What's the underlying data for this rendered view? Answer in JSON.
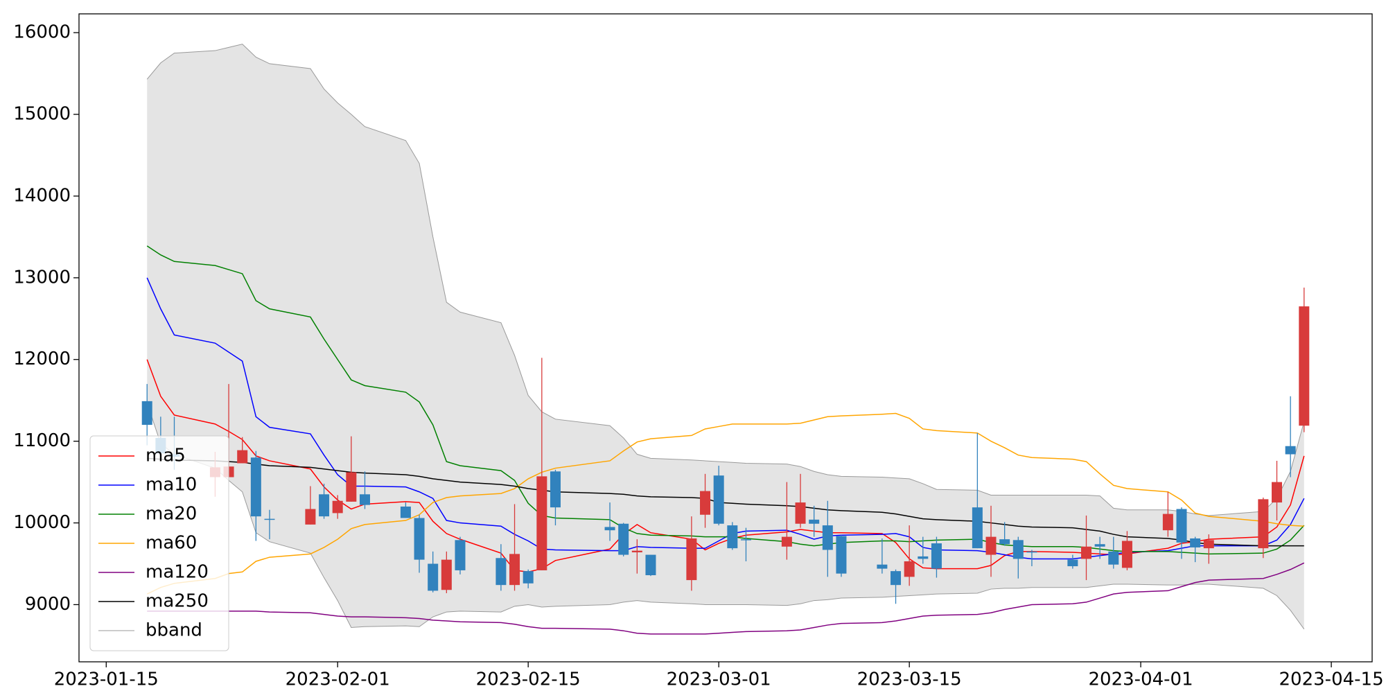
{
  "chart_data": {
    "type": "candlestick",
    "x": [
      "2023-01-18",
      "2023-01-19",
      "2023-01-20",
      "2023-01-23",
      "2023-01-24",
      "2023-01-25",
      "2023-01-26",
      "2023-01-27",
      "2023-01-30",
      "2023-01-31",
      "2023-02-01",
      "2023-02-02",
      "2023-02-03",
      "2023-02-06",
      "2023-02-07",
      "2023-02-08",
      "2023-02-09",
      "2023-02-10",
      "2023-02-13",
      "2023-02-14",
      "2023-02-15",
      "2023-02-16",
      "2023-02-17",
      "2023-02-21",
      "2023-02-22",
      "2023-02-23",
      "2023-02-24",
      "2023-02-27",
      "2023-02-28",
      "2023-03-01",
      "2023-03-02",
      "2023-03-03",
      "2023-03-06",
      "2023-03-07",
      "2023-03-08",
      "2023-03-09",
      "2023-03-10",
      "2023-03-13",
      "2023-03-14",
      "2023-03-15",
      "2023-03-16",
      "2023-03-17",
      "2023-03-20",
      "2023-03-21",
      "2023-03-22",
      "2023-03-23",
      "2023-03-24",
      "2023-03-27",
      "2023-03-28",
      "2023-03-29",
      "2023-03-30",
      "2023-03-31",
      "2023-04-03",
      "2023-04-04",
      "2023-04-05",
      "2023-04-06",
      "2023-04-10",
      "2023-04-11",
      "2023-04-12",
      "2023-04-13"
    ],
    "open": [
      11490,
      11040,
      10840,
      10560,
      10560,
      10730,
      10800,
      10050,
      9980,
      10350,
      10120,
      10260,
      10350,
      10200,
      10060,
      9500,
      9180,
      9790,
      9570,
      9240,
      9410,
      9420,
      10630,
      9950,
      9990,
      9640,
      9610,
      9300,
      10100,
      10580,
      9970,
      9800,
      9710,
      9990,
      10040,
      9970,
      9840,
      9490,
      9410,
      9340,
      9590,
      9750,
      10190,
      9610,
      9800,
      9790,
      9650,
      9550,
      9560,
      9740,
      9650,
      9450,
      9910,
      10170,
      9810,
      9690,
      9690,
      10250,
      10940,
      11190
    ],
    "high": [
      11700,
      11300,
      11300,
      10870,
      11700,
      11050,
      10880,
      10160,
      10450,
      10480,
      10340,
      11060,
      10630,
      10250,
      10100,
      9650,
      9650,
      9830,
      9740,
      10230,
      9430,
      12020,
      10650,
      10250,
      10000,
      9800,
      9610,
      10080,
      10600,
      10700,
      10010,
      9940,
      10500,
      10600,
      10210,
      10270,
      9850,
      9810,
      9430,
      9970,
      9830,
      9830,
      11100,
      10210,
      10010,
      9830,
      9670,
      9610,
      10090,
      9830,
      9830,
      9900,
      10380,
      10190,
      9830,
      9860,
      10310,
      10760,
      11550,
      12880
    ],
    "low": [
      10950,
      10800,
      10650,
      10320,
      10560,
      10730,
      9780,
      9800,
      9980,
      10050,
      10050,
      10260,
      10170,
      10060,
      9390,
      9150,
      9140,
      9370,
      9170,
      9170,
      9200,
      9420,
      9970,
      9780,
      9590,
      9380,
      9350,
      9170,
      9940,
      9970,
      9670,
      9530,
      9550,
      9940,
      9830,
      9340,
      9340,
      9380,
      9010,
      9230,
      9500,
      9330,
      9690,
      9340,
      9720,
      9320,
      9470,
      9440,
      9300,
      9560,
      9440,
      9420,
      9830,
      9560,
      9520,
      9500,
      9570,
      10030,
      10560,
      11110
    ],
    "close": [
      11200,
      10850,
      10810,
      10680,
      10690,
      10890,
      10080,
      10040,
      10170,
      10080,
      10270,
      10620,
      10220,
      10060,
      9550,
      9170,
      9550,
      9420,
      9240,
      9620,
      9260,
      10570,
      10190,
      9910,
      9610,
      9660,
      9360,
      9810,
      10390,
      9990,
      9690,
      9790,
      9830,
      10250,
      9990,
      9670,
      9380,
      9440,
      9240,
      9530,
      9560,
      9440,
      9690,
      9830,
      9740,
      9560,
      9640,
      9470,
      9710,
      9710,
      9490,
      9780,
      10110,
      9760,
      9700,
      9790,
      10290,
      10500,
      10840,
      12650
    ],
    "up_color": "#d83b3b",
    "down_color": "#3182bd",
    "series": [
      {
        "name": "ma5",
        "color": "#ff0000",
        "values": [
          12000,
          11550,
          11320,
          11210,
          11120,
          11020,
          10820,
          10760,
          10660,
          10440,
          10280,
          10170,
          10230,
          10260,
          10250,
          10020,
          9870,
          9800,
          9630,
          9420,
          9400,
          9440,
          9540,
          9680,
          9860,
          9980,
          9880,
          9800,
          9670,
          9750,
          9810,
          9850,
          9890,
          9920,
          9900,
          9880,
          9880,
          9870,
          9760,
          9560,
          9450,
          9440,
          9440,
          9480,
          9600,
          9650,
          9650,
          9640,
          9630,
          9620,
          9610,
          9620,
          9690,
          9750,
          9770,
          9800,
          9830,
          9950,
          10220,
          10820
        ]
      },
      {
        "name": "ma10",
        "color": "#0000ff",
        "values": [
          13000,
          12620,
          12300,
          12200,
          12090,
          11980,
          11300,
          11170,
          11090,
          10830,
          10590,
          10450,
          10450,
          10440,
          10380,
          10300,
          10030,
          10000,
          9960,
          9860,
          9780,
          9680,
          9670,
          9660,
          9660,
          9710,
          9700,
          9690,
          9690,
          9780,
          9870,
          9900,
          9910,
          9860,
          9800,
          9840,
          9850,
          9860,
          9870,
          9830,
          9700,
          9670,
          9660,
          9640,
          9610,
          9580,
          9560,
          9560,
          9580,
          9600,
          9620,
          9640,
          9660,
          9690,
          9720,
          9720,
          9720,
          9790,
          9980,
          10300
        ]
      },
      {
        "name": "ma20",
        "color": "#008000",
        "values": [
          13390,
          13280,
          13200,
          13150,
          13100,
          13050,
          12720,
          12620,
          12520,
          12250,
          12000,
          11750,
          11680,
          11600,
          11480,
          11200,
          10750,
          10700,
          10640,
          10520,
          10240,
          10090,
          10060,
          10040,
          9940,
          9870,
          9850,
          9840,
          9830,
          9830,
          9830,
          9810,
          9770,
          9740,
          9720,
          9740,
          9760,
          9780,
          9780,
          9770,
          9780,
          9790,
          9800,
          9760,
          9730,
          9720,
          9710,
          9710,
          9700,
          9680,
          9660,
          9650,
          9650,
          9640,
          9630,
          9620,
          9630,
          9680,
          9790,
          9970
        ]
      },
      {
        "name": "ma60",
        "color": "#ffa500",
        "values": [
          9130,
          9210,
          9260,
          9320,
          9380,
          9400,
          9530,
          9580,
          9620,
          9700,
          9800,
          9930,
          9980,
          10030,
          10100,
          10250,
          10310,
          10330,
          10360,
          10420,
          10540,
          10620,
          10670,
          10760,
          10880,
          10990,
          11030,
          11070,
          11150,
          11180,
          11210,
          11210,
          11210,
          11220,
          11260,
          11300,
          11310,
          11330,
          11340,
          11280,
          11150,
          11130,
          11100,
          11000,
          10920,
          10830,
          10800,
          10780,
          10750,
          10600,
          10460,
          10420,
          10380,
          10280,
          10120,
          10080,
          10020,
          9990,
          9970,
          9960
        ]
      },
      {
        "name": "ma120",
        "color": "#800080",
        "values": [
          8920,
          8920,
          8920,
          8920,
          8920,
          8920,
          8920,
          8910,
          8900,
          8880,
          8860,
          8850,
          8850,
          8840,
          8830,
          8810,
          8800,
          8790,
          8780,
          8760,
          8730,
          8710,
          8710,
          8700,
          8680,
          8650,
          8640,
          8640,
          8640,
          8650,
          8660,
          8670,
          8680,
          8690,
          8720,
          8750,
          8770,
          8780,
          8800,
          8830,
          8860,
          8870,
          8880,
          8900,
          8940,
          8970,
          9000,
          9010,
          9030,
          9080,
          9130,
          9150,
          9170,
          9220,
          9270,
          9300,
          9320,
          9370,
          9430,
          9510
        ]
      },
      {
        "name": "ma250",
        "color": "#000000",
        "values": [
          10790,
          10780,
          10770,
          10760,
          10750,
          10740,
          10720,
          10700,
          10680,
          10660,
          10640,
          10620,
          10610,
          10590,
          10570,
          10540,
          10520,
          10500,
          10470,
          10450,
          10420,
          10400,
          10380,
          10360,
          10350,
          10330,
          10320,
          10310,
          10300,
          10250,
          10240,
          10230,
          10210,
          10200,
          10180,
          10160,
          10150,
          10130,
          10110,
          10080,
          10050,
          10040,
          10020,
          10000,
          9980,
          9960,
          9950,
          9940,
          9920,
          9900,
          9860,
          9830,
          9810,
          9790,
          9760,
          9740,
          9720,
          9720,
          9720,
          9720
        ]
      }
    ],
    "bband": {
      "name": "bband",
      "color": "#999999",
      "fill": "#e4e4e4",
      "upper": [
        15430,
        15630,
        15750,
        15780,
        15820,
        15860,
        15700,
        15620,
        15560,
        15310,
        15140,
        15000,
        14850,
        14680,
        14400,
        13500,
        12700,
        12580,
        12450,
        12050,
        11560,
        11360,
        11270,
        11190,
        11040,
        10840,
        10790,
        10770,
        10760,
        10750,
        10740,
        10730,
        10720,
        10690,
        10630,
        10590,
        10570,
        10560,
        10550,
        10540,
        10480,
        10410,
        10400,
        10340,
        10340,
        10340,
        10340,
        10340,
        10340,
        10330,
        10180,
        10160,
        10160,
        10140,
        10110,
        10090,
        10140,
        10300,
        10630,
        11240
      ],
      "lower": [
        11470,
        10970,
        10840,
        10670,
        10520,
        10380,
        9880,
        9770,
        9630,
        9330,
        9050,
        8720,
        8730,
        8740,
        8730,
        8850,
        8910,
        8920,
        8910,
        8980,
        9000,
        8970,
        8980,
        9000,
        9030,
        9050,
        9030,
        9010,
        9000,
        9000,
        9000,
        9000,
        8990,
        9010,
        9050,
        9060,
        9080,
        9090,
        9100,
        9110,
        9120,
        9130,
        9140,
        9190,
        9200,
        9200,
        9210,
        9210,
        9210,
        9230,
        9250,
        9250,
        9240,
        9240,
        9250,
        9250,
        9200,
        9110,
        8930,
        8700
      ]
    },
    "xlim": [
      "2023-01-13",
      "2023-04-18"
    ],
    "xticks": [
      "2023-01-15",
      "2023-02-01",
      "2023-02-15",
      "2023-03-01",
      "2023-03-15",
      "2023-04-01",
      "2023-04-15"
    ],
    "ylim": [
      8300,
      16230
    ],
    "yticks": [
      9000,
      10000,
      11000,
      12000,
      13000,
      14000,
      15000,
      16000
    ],
    "legend": "lower left"
  }
}
